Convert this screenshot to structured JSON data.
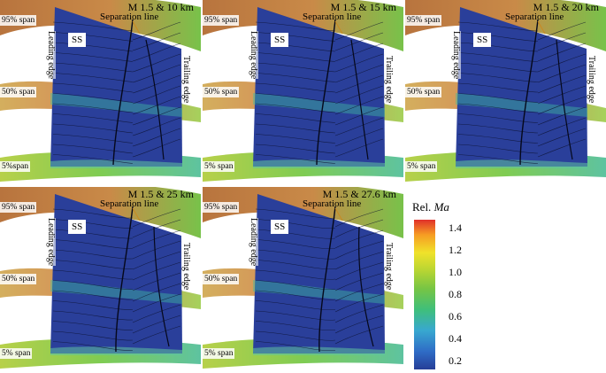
{
  "panels": [
    {
      "title": "M 1.5 & 10 km",
      "hasSS": true,
      "separation_label": "Separation line",
      "labels": {
        "span95": "95% span",
        "span50": "50% span",
        "span5": "5%span",
        "leading": "Leading edge",
        "trailing": "Trailing edge"
      }
    },
    {
      "title": "M 1.5 & 15 km",
      "hasSS": true,
      "separation_label": "Separation line",
      "labels": {
        "span95": "95% span",
        "span50": "50% span",
        "span5": "5% span",
        "leading": "Leading edge",
        "trailing": "Trailing edge"
      }
    },
    {
      "title": "M 1.5 & 20 km",
      "hasSS": true,
      "separation_label": "Separation line",
      "labels": {
        "span95": "95% span",
        "span50": "50% span",
        "span5": "5% span",
        "leading": "Leading edge",
        "trailing": "Trailing edge"
      }
    },
    {
      "title": "M 1.5 & 25 km",
      "hasSS": true,
      "separation_label": "Separation line",
      "labels": {
        "span95": "95% span",
        "span50": "50% span",
        "span5": "5% span",
        "leading": "Leading edge",
        "trailing": "Trailing edge"
      }
    },
    {
      "title": "M 1.5 & 27.6 km",
      "hasSS": true,
      "separation_label": "Separation line",
      "labels": {
        "span95": "95% span",
        "span50": "50% span",
        "span5": "5% span",
        "leading": "Leading edge",
        "trailing": "Trailing edge"
      }
    }
  ],
  "ss_label": "SS",
  "legend": {
    "title_prefix": "Rel.",
    "title_var": "Ma",
    "ticks": [
      "1.4",
      "1.2",
      "1.0",
      "0.8",
      "0.6",
      "0.4",
      "0.2"
    ]
  },
  "colors": {
    "blade": "#2a3f9a",
    "streamline": "#0a0f2a",
    "hub": "#7fcf4a",
    "tip": "#c07040"
  }
}
